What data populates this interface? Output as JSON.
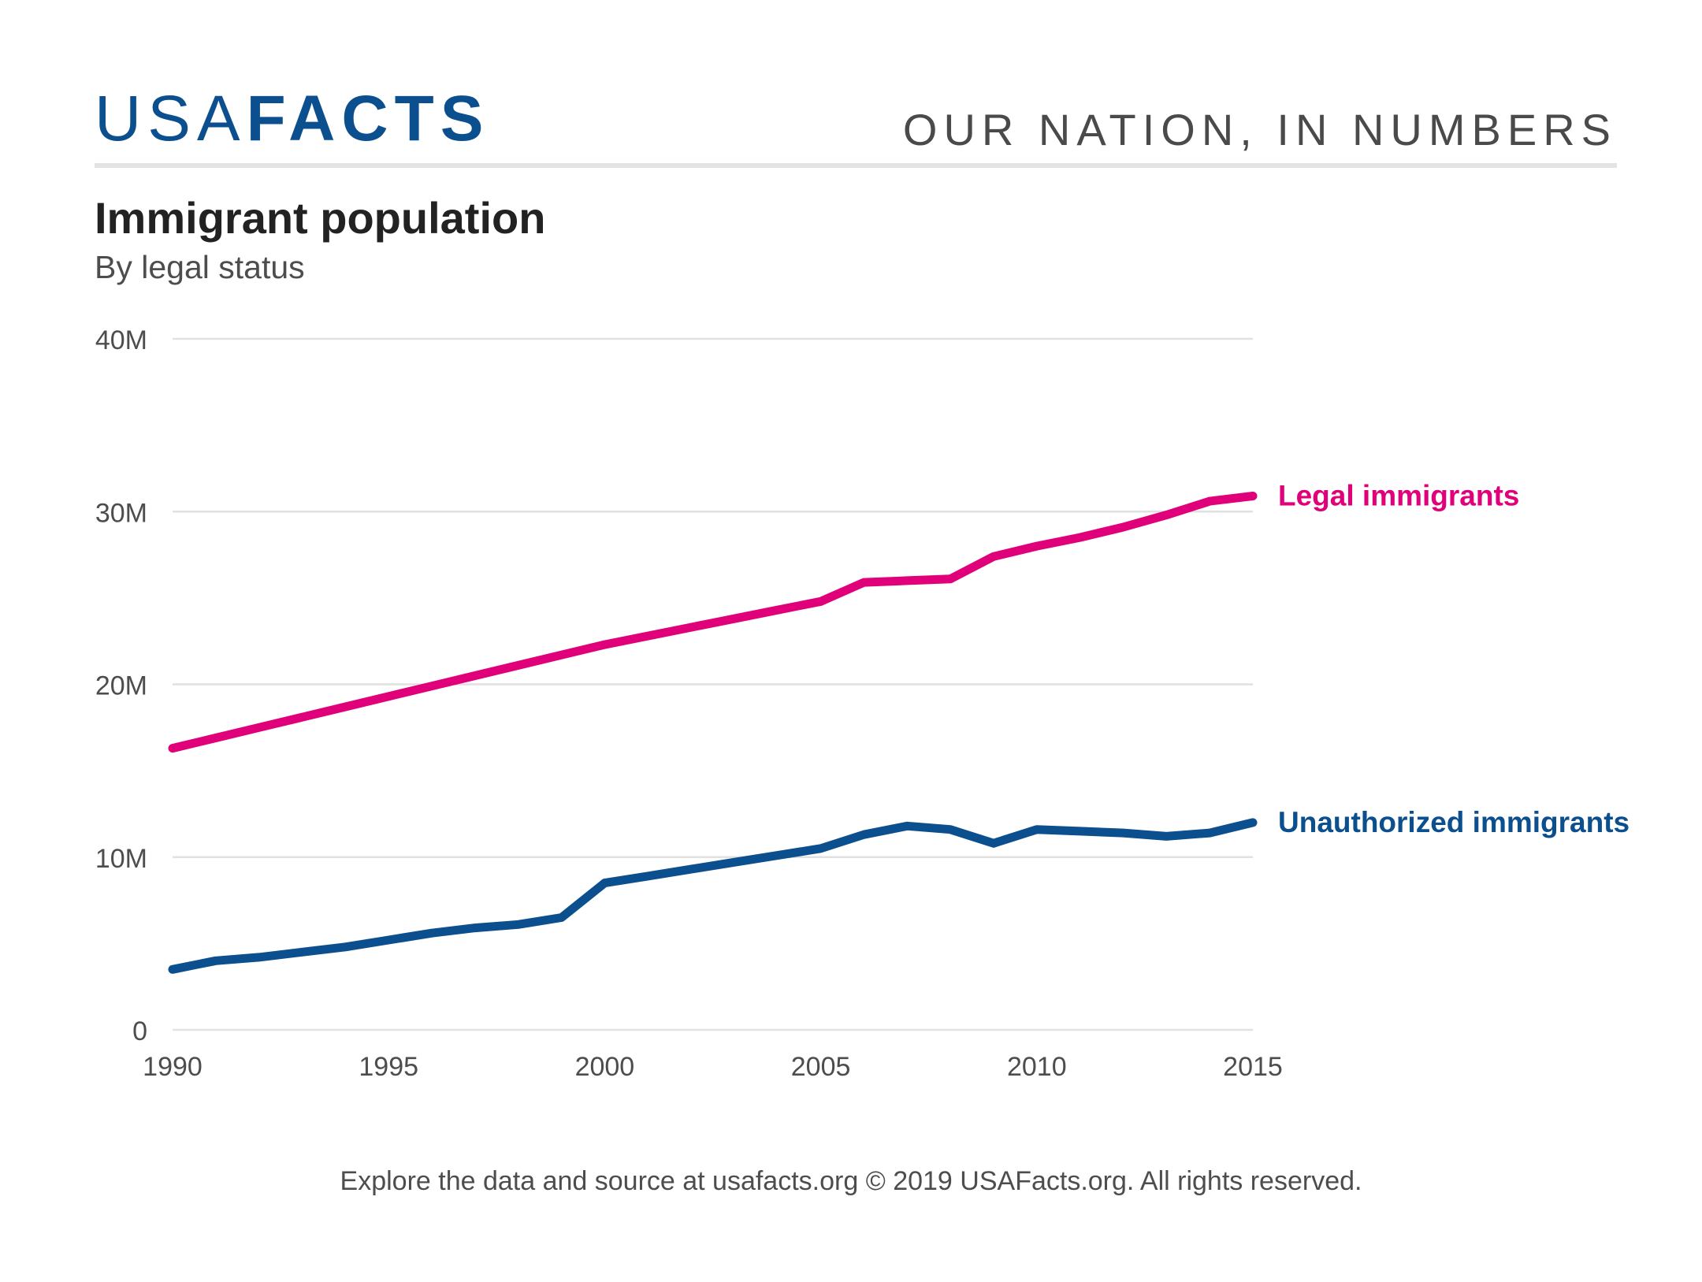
{
  "brand": {
    "logo_light": "USA",
    "logo_bold": "FACTS",
    "tagline": "OUR NATION, IN NUMBERS"
  },
  "colors": {
    "brand": "#0b4f8e",
    "legal": "#e0007a",
    "unauthorized": "#0b4f8e",
    "grid": "#e1e1e1",
    "axis_text": "#4d4d4d"
  },
  "chart_data": {
    "type": "line",
    "title": "Immigrant population",
    "subtitle": "By legal status",
    "xlabel": "",
    "ylabel": "",
    "xlim": [
      1990,
      2015
    ],
    "ylim": [
      0,
      40
    ],
    "x_ticks": [
      1990,
      1995,
      2000,
      2005,
      2010,
      2015
    ],
    "y_ticks": [
      0,
      10,
      20,
      30,
      40
    ],
    "y_tick_labels": [
      "0",
      "10M",
      "20M",
      "30M",
      "40M"
    ],
    "grid": true,
    "legend": "direct labels at line ends",
    "x": [
      1990,
      1991,
      1992,
      1993,
      1994,
      1995,
      1996,
      1997,
      1998,
      1999,
      2000,
      2001,
      2002,
      2003,
      2004,
      2005,
      2006,
      2007,
      2008,
      2009,
      2010,
      2011,
      2012,
      2013,
      2014,
      2015
    ],
    "series": [
      {
        "name": "Legal immigrants",
        "color": "#e0007a",
        "values": [
          16.3,
          16.9,
          17.5,
          18.1,
          18.7,
          19.3,
          19.9,
          20.5,
          21.1,
          21.7,
          22.3,
          22.8,
          23.3,
          23.8,
          24.3,
          24.8,
          25.9,
          26.0,
          26.1,
          27.4,
          28.0,
          28.5,
          29.1,
          29.8,
          30.6,
          30.9
        ]
      },
      {
        "name": "Unauthorized immigrants",
        "color": "#0b4f8e",
        "values": [
          3.5,
          4.0,
          4.2,
          4.5,
          4.8,
          5.2,
          5.6,
          5.9,
          6.1,
          6.5,
          8.5,
          8.9,
          9.3,
          9.7,
          10.1,
          10.5,
          11.3,
          11.8,
          11.6,
          10.8,
          11.6,
          11.5,
          11.4,
          11.2,
          11.4,
          12.0
        ]
      }
    ]
  },
  "footer": "Explore the data and source at usafacts.org © 2019 USAFacts.org. All rights reserved."
}
